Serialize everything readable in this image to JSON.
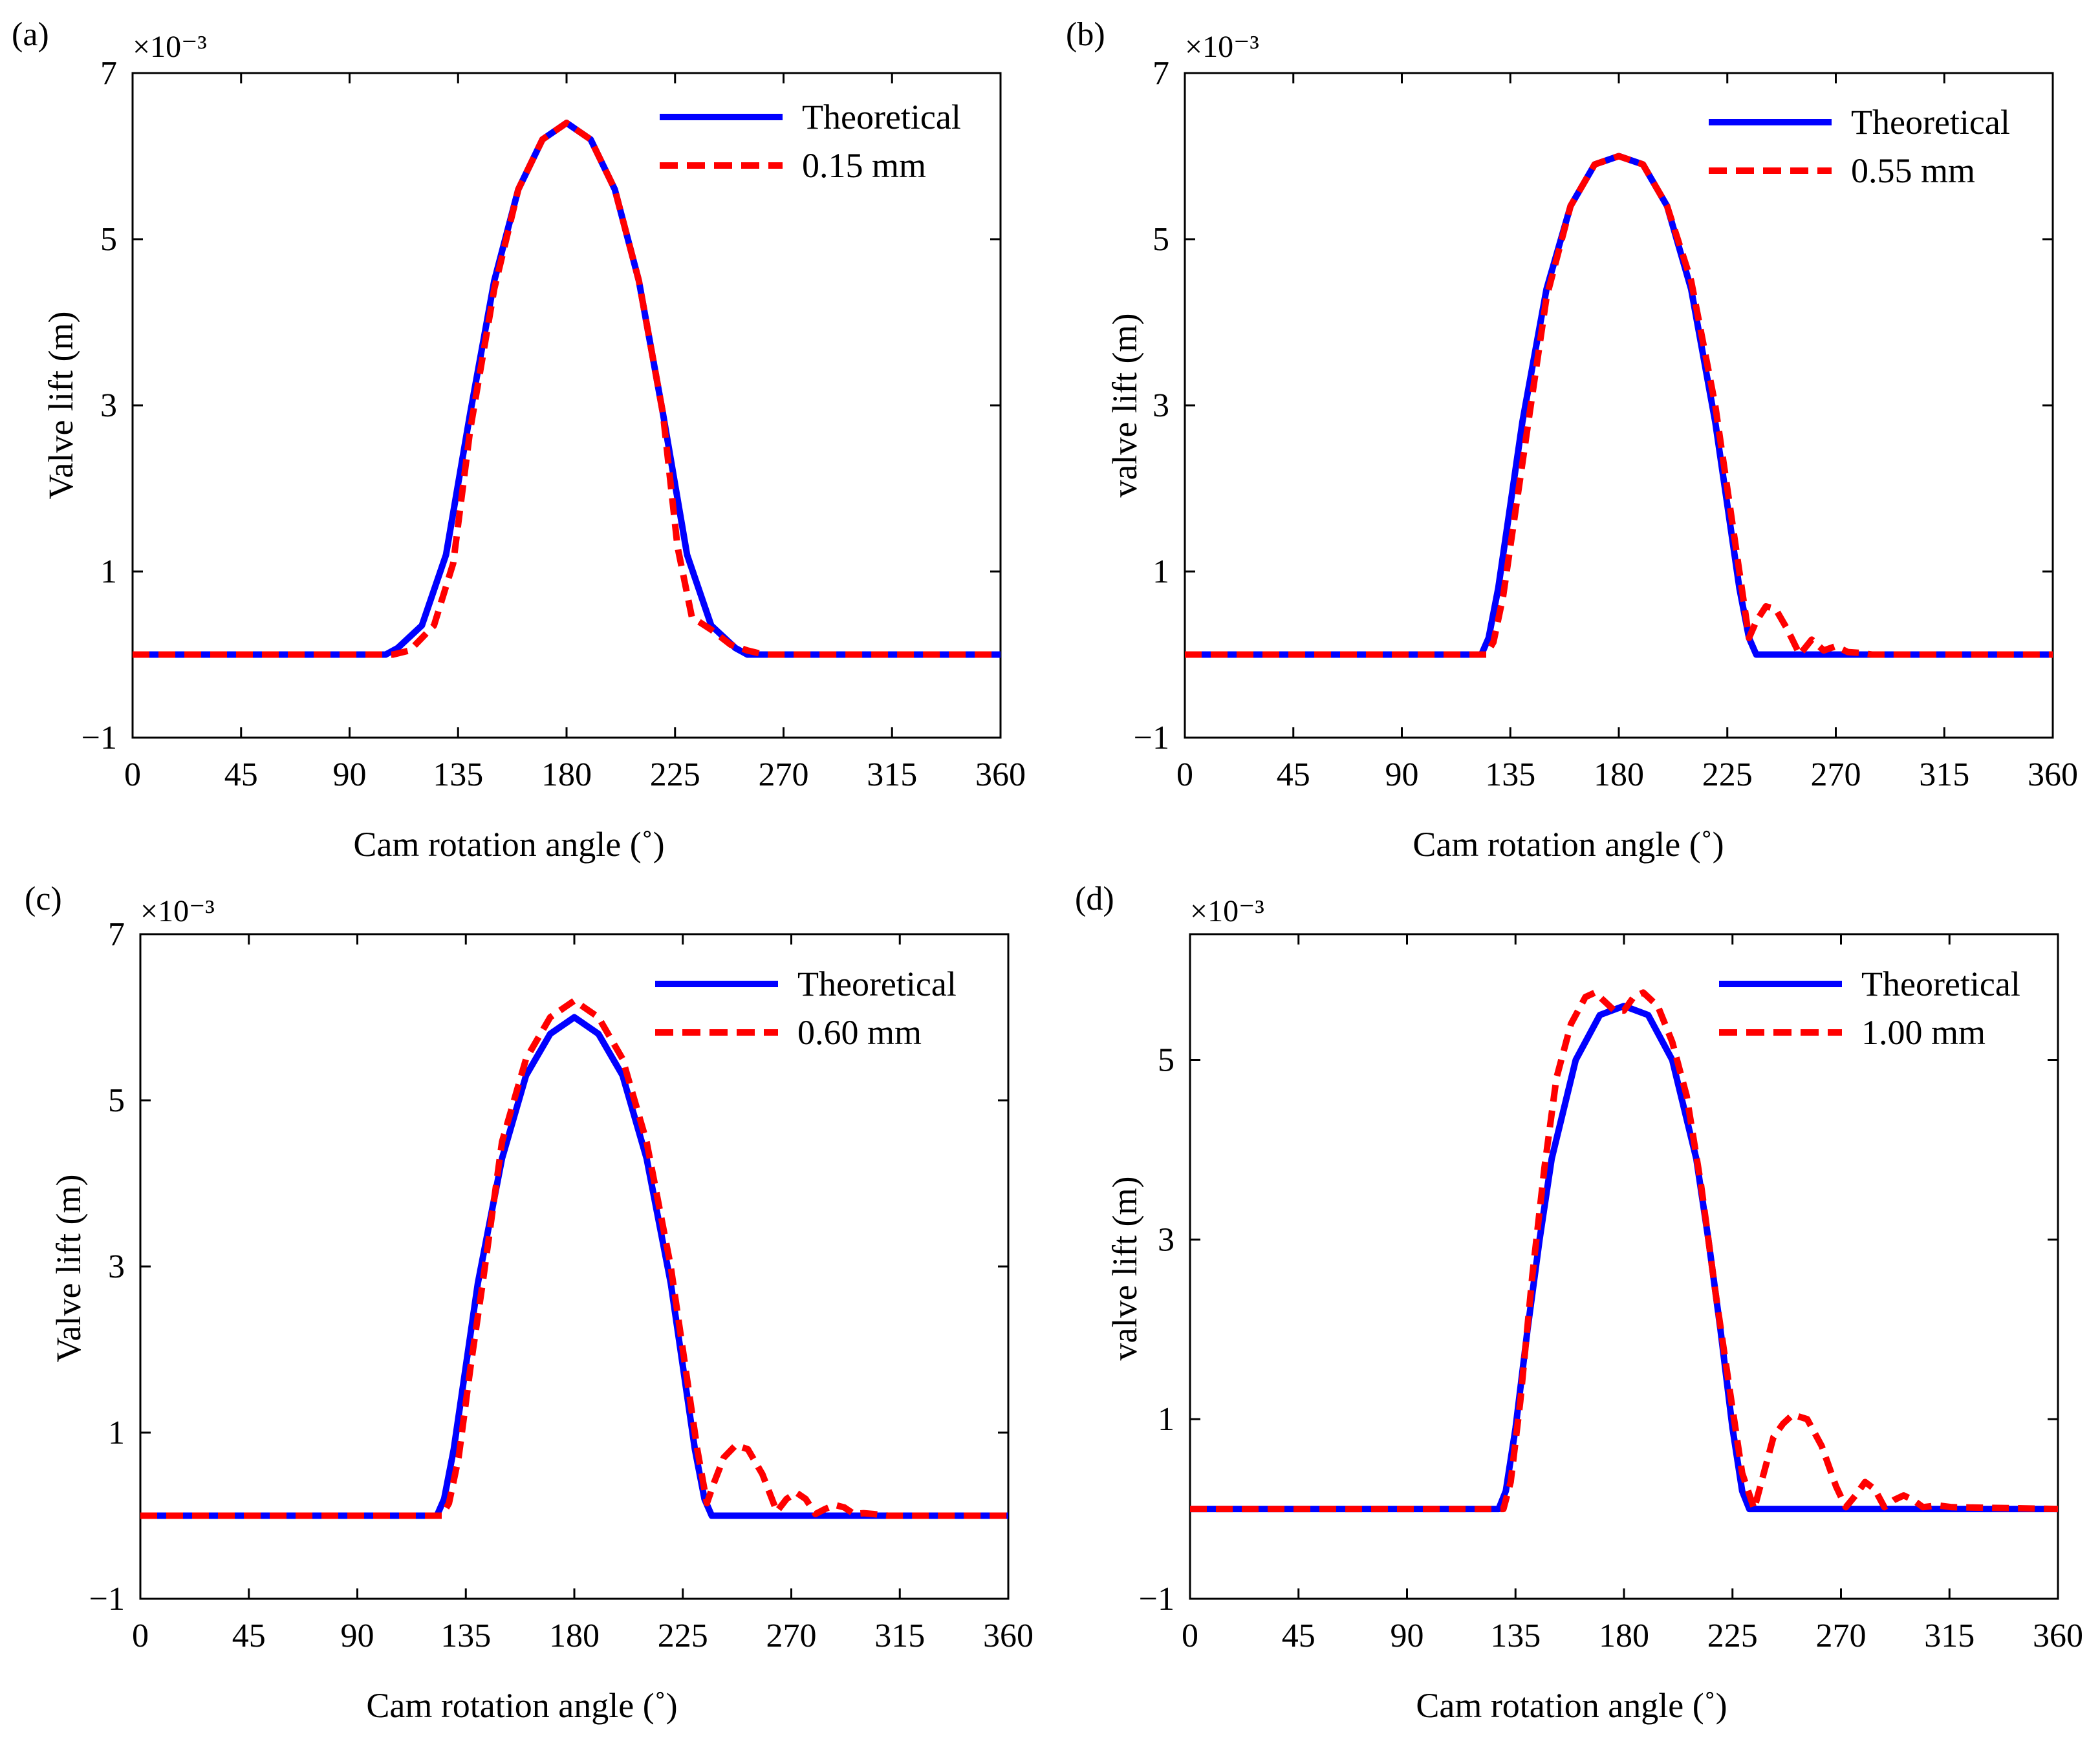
{
  "figure": {
    "panel_count": 4,
    "colors": {
      "theoretical": "#0000FF",
      "measured": "#FF0000",
      "axis": "#000000"
    }
  },
  "chart_data": [
    {
      "panel": "(a)",
      "type": "line",
      "xlabel": "Cam rotation angle (˚)",
      "ylabel": "Valve lift (m)",
      "exponent_label": "×10⁻³",
      "xlim": [
        0,
        360
      ],
      "ylim": [
        -1,
        7
      ],
      "xticks": [
        0,
        45,
        90,
        135,
        180,
        225,
        270,
        315,
        360
      ],
      "xtick_labels": [
        "0",
        "45",
        "90",
        "135",
        "180",
        "225",
        "270",
        "315",
        "360"
      ],
      "yticks": [
        -1,
        1,
        3,
        5,
        7
      ],
      "ytick_labels": [
        "−1",
        "1",
        "3",
        "5",
        "7"
      ],
      "legend": "top-right",
      "series": [
        {
          "name": "Theoretical",
          "style": "solid",
          "color": "#0000FF",
          "x": [
            0,
            105,
            110,
            120,
            130,
            140,
            150,
            160,
            170,
            180,
            190,
            200,
            210,
            220,
            230,
            240,
            250,
            255,
            360
          ],
          "y": [
            0,
            0,
            0.08,
            0.35,
            1.2,
            2.9,
            4.5,
            5.6,
            6.2,
            6.4,
            6.2,
            5.6,
            4.5,
            2.9,
            1.2,
            0.35,
            0.08,
            0,
            0
          ]
        },
        {
          "name": "0.15 mm",
          "style": "dashed",
          "color": "#FF0000",
          "x": [
            0,
            108,
            115,
            125,
            133,
            140,
            150,
            160,
            170,
            180,
            190,
            200,
            210,
            220,
            226,
            232,
            240,
            248,
            255,
            262,
            360
          ],
          "y": [
            0,
            0,
            0.05,
            0.35,
            1.1,
            2.7,
            4.4,
            5.6,
            6.2,
            6.4,
            6.2,
            5.6,
            4.5,
            2.9,
            1.3,
            0.45,
            0.3,
            0.12,
            0.05,
            0,
            0
          ]
        }
      ]
    },
    {
      "panel": "(b)",
      "type": "line",
      "xlabel": "Cam rotation angle (˚)",
      "ylabel": "valve lift (m)",
      "exponent_label": "×10⁻³",
      "xlim": [
        0,
        360
      ],
      "ylim": [
        -1,
        7
      ],
      "xticks": [
        0,
        45,
        90,
        135,
        180,
        225,
        270,
        315,
        360
      ],
      "xtick_labels": [
        "0",
        "45",
        "90",
        "135",
        "180",
        "225",
        "270",
        "315",
        "360"
      ],
      "yticks": [
        -1,
        1,
        3,
        5,
        7
      ],
      "ytick_labels": [
        "−1",
        "1",
        "3",
        "5",
        "7"
      ],
      "legend": "top-right",
      "series": [
        {
          "name": "Theoretical",
          "style": "solid",
          "color": "#0000FF",
          "x": [
            0,
            123,
            126,
            130,
            135,
            140,
            150,
            160,
            170,
            180,
            190,
            200,
            210,
            220,
            225,
            230,
            234,
            237,
            360
          ],
          "y": [
            0,
            0,
            0.2,
            0.8,
            1.8,
            2.8,
            4.4,
            5.4,
            5.9,
            6.0,
            5.9,
            5.4,
            4.4,
            2.8,
            1.8,
            0.8,
            0.2,
            0,
            0
          ]
        },
        {
          "name": "0.55 mm",
          "style": "dashed",
          "color": "#FF0000",
          "x": [
            0,
            125,
            128,
            132,
            137,
            142,
            150,
            160,
            170,
            180,
            190,
            200,
            210,
            220,
            226,
            231,
            234,
            237,
            241,
            245,
            250,
            255,
            260,
            265,
            270,
            275,
            280,
            285,
            290,
            360
          ],
          "y": [
            0,
            0,
            0.15,
            0.7,
            1.7,
            2.7,
            4.3,
            5.4,
            5.9,
            6.0,
            5.9,
            5.4,
            4.5,
            3.0,
            1.8,
            0.8,
            0.2,
            0.4,
            0.58,
            0.55,
            0.3,
            0,
            0.18,
            0.05,
            0.1,
            0.03,
            0.02,
            0,
            0,
            0
          ]
        }
      ]
    },
    {
      "panel": "(c)",
      "type": "line",
      "xlabel": "Cam rotation angle (˚)",
      "ylabel": "Valve lift (m)",
      "exponent_label": "×10⁻³",
      "xlim": [
        0,
        360
      ],
      "ylim": [
        -1,
        7
      ],
      "xticks": [
        0,
        45,
        90,
        135,
        180,
        225,
        270,
        315,
        360
      ],
      "xtick_labels": [
        "0",
        "45",
        "90",
        "135",
        "180",
        "225",
        "270",
        "315",
        "360"
      ],
      "yticks": [
        -1,
        1,
        3,
        5,
        7
      ],
      "ytick_labels": [
        "−1",
        "1",
        "3",
        "5",
        "7"
      ],
      "legend": "top-right",
      "series": [
        {
          "name": "Theoretical",
          "style": "solid",
          "color": "#0000FF",
          "x": [
            0,
            123,
            126,
            130,
            135,
            140,
            150,
            160,
            170,
            180,
            190,
            200,
            210,
            220,
            225,
            230,
            234,
            237,
            360
          ],
          "y": [
            0,
            0,
            0.2,
            0.8,
            1.8,
            2.8,
            4.3,
            5.3,
            5.8,
            6.0,
            5.8,
            5.3,
            4.3,
            2.8,
            1.8,
            0.8,
            0.2,
            0,
            0
          ]
        },
        {
          "name": "0.60 mm",
          "style": "dashed",
          "color": "#FF0000",
          "x": [
            0,
            125,
            128,
            132,
            137,
            142,
            150,
            160,
            170,
            180,
            190,
            200,
            210,
            220,
            226,
            231,
            235,
            238,
            242,
            247,
            252,
            258,
            264,
            268,
            272,
            276,
            280,
            284,
            288,
            292,
            296,
            300,
            304,
            310,
            360
          ],
          "y": [
            0,
            0,
            0.15,
            0.7,
            1.8,
            2.8,
            4.5,
            5.5,
            6.0,
            6.2,
            6.0,
            5.5,
            4.5,
            3.0,
            1.8,
            0.8,
            0.15,
            0.4,
            0.7,
            0.85,
            0.8,
            0.5,
            0.05,
            0.2,
            0.28,
            0.2,
            0.02,
            0.08,
            0.13,
            0.1,
            0.02,
            0.03,
            0.02,
            0,
            0
          ]
        }
      ]
    },
    {
      "panel": "(d)",
      "type": "line",
      "xlabel": "Cam rotation angle (˚)",
      "ylabel": "valve lift (m)",
      "exponent_label": "×10⁻³",
      "xlim": [
        0,
        360
      ],
      "ylim": [
        -1,
        6.4
      ],
      "xticks": [
        0,
        45,
        90,
        135,
        180,
        225,
        270,
        315,
        360
      ],
      "xtick_labels": [
        "0",
        "45",
        "90",
        "135",
        "180",
        "225",
        "270",
        "315",
        "360"
      ],
      "yticks": [
        -1,
        1,
        3,
        5
      ],
      "ytick_labels": [
        "−1",
        "1",
        "3",
        "5"
      ],
      "legend": "top-right",
      "series": [
        {
          "name": "Theoretical",
          "style": "solid",
          "color": "#0000FF",
          "x": [
            0,
            128,
            131,
            135,
            140,
            145,
            150,
            160,
            170,
            180,
            190,
            200,
            210,
            215,
            220,
            225,
            229,
            232,
            360
          ],
          "y": [
            0,
            0,
            0.2,
            0.9,
            2.0,
            3.0,
            3.9,
            5.0,
            5.5,
            5.6,
            5.5,
            5.0,
            3.9,
            3.0,
            2.0,
            0.9,
            0.2,
            0,
            0
          ]
        },
        {
          "name": "1.00 mm",
          "style": "dashed",
          "color": "#FF0000",
          "x": [
            0,
            130,
            133,
            137,
            142,
            147,
            152,
            158,
            164,
            168,
            172,
            176,
            180,
            184,
            188,
            194,
            200,
            206,
            212,
            218,
            224,
            229,
            234,
            238,
            242,
            246,
            250,
            256,
            262,
            268,
            272,
            276,
            280,
            284,
            288,
            292,
            296,
            300,
            304,
            310,
            316,
            360
          ],
          "y": [
            0,
            0,
            0.3,
            1.2,
            2.6,
            3.8,
            4.8,
            5.4,
            5.7,
            5.75,
            5.65,
            5.55,
            5.55,
            5.7,
            5.75,
            5.6,
            5.2,
            4.6,
            3.6,
            2.4,
            1.3,
            0.4,
            0,
            0.4,
            0.8,
            0.95,
            1.05,
            1.0,
            0.7,
            0.25,
            0.02,
            0.15,
            0.3,
            0.22,
            0.02,
            0.1,
            0.15,
            0.1,
            0.02,
            0.04,
            0.02,
            0
          ]
        }
      ]
    }
  ]
}
